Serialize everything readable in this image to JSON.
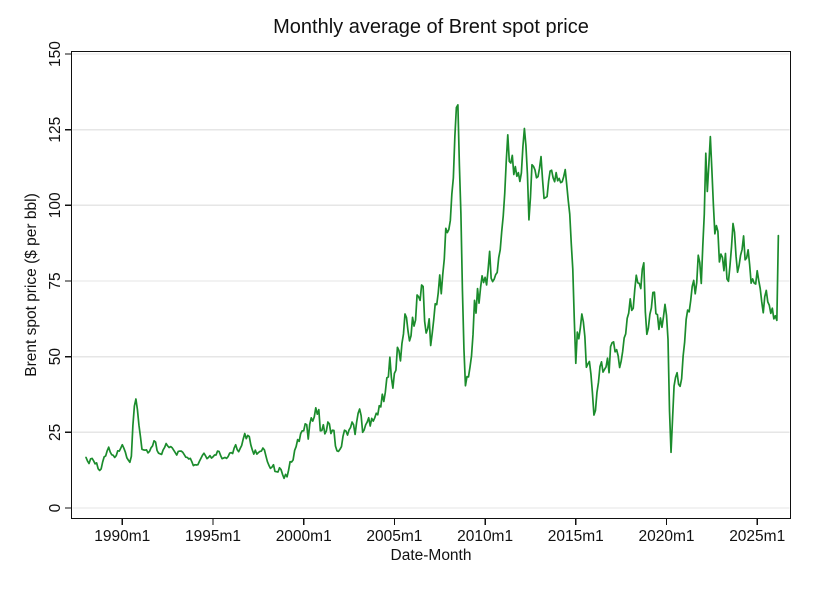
{
  "chart_data": {
    "type": "line",
    "title": "Monthly average of Brent spot price",
    "xlabel": "Date-Month",
    "ylabel": "Brent spot price ($ per bbl)",
    "x_ticks": [
      {
        "label": "1990m1",
        "year": 1990
      },
      {
        "label": "1995m1",
        "year": 1995
      },
      {
        "label": "2000m1",
        "year": 2000
      },
      {
        "label": "2005m1",
        "year": 2005
      },
      {
        "label": "2010m1",
        "year": 2010
      },
      {
        "label": "2015m1",
        "year": 2015
      },
      {
        "label": "2020m1",
        "year": 2020
      },
      {
        "label": "2025m1",
        "year": 2025
      }
    ],
    "y_ticks": [
      0,
      25,
      50,
      75,
      100,
      125,
      150
    ],
    "ylim": [
      0,
      150
    ],
    "grid": "horizontal-only",
    "legend": "none",
    "colors": {
      "line": "#1b8c2c",
      "gridline": "#e6e6e6",
      "axis": "#111111",
      "text": "#111111",
      "background": "#ffffff"
    },
    "series": [
      {
        "name": "Brent spot price",
        "frequency": "monthly",
        "start_year": 1988,
        "start_month": 1,
        "values_by_year": [
          [
            16.7,
            15.5,
            14.7,
            16.2,
            16.4,
            15.6,
            14.6,
            14.9,
            13.0,
            12.4,
            12.9,
            15.2
          ],
          [
            16.9,
            17.2,
            18.9,
            20.1,
            18.5,
            17.6,
            17.4,
            16.7,
            17.3,
            18.9,
            18.8,
            19.8
          ],
          [
            20.9,
            19.8,
            18.5,
            16.6,
            15.8,
            15.1,
            17.1,
            27.2,
            33.7,
            36.0,
            32.5,
            27.4
          ],
          [
            23.6,
            19.4,
            19.2,
            19.1,
            19.2,
            18.2,
            18.7,
            19.9,
            20.5,
            22.2,
            21.8,
            19.0
          ],
          [
            18.1,
            17.9,
            17.7,
            19.2,
            20.0,
            21.3,
            20.5,
            20.0,
            20.3,
            19.9,
            19.1,
            18.3
          ],
          [
            17.5,
            18.7,
            18.8,
            18.8,
            18.4,
            17.6,
            16.8,
            16.7,
            16.2,
            16.4,
            15.3,
            14.0
          ],
          [
            14.3,
            14.2,
            14.3,
            15.4,
            16.4,
            17.4,
            18.1,
            17.3,
            16.3,
            16.7,
            17.3,
            16.5
          ],
          [
            16.9,
            17.5,
            17.5,
            18.8,
            18.7,
            17.4,
            16.3,
            16.5,
            16.7,
            16.4,
            17.0,
            18.1
          ],
          [
            18.3,
            18.0,
            19.8,
            20.9,
            19.3,
            18.6,
            19.7,
            20.7,
            22.8,
            24.6,
            22.9,
            24.0
          ],
          [
            23.6,
            20.9,
            19.2,
            17.8,
            19.1,
            17.8,
            18.3,
            18.7,
            18.8,
            19.8,
            19.2,
            17.2
          ],
          [
            15.3,
            14.1,
            13.1,
            13.5,
            14.3,
            12.1,
            12.0,
            11.9,
            13.3,
            12.7,
            11.1,
            9.8
          ],
          [
            11.1,
            10.3,
            12.5,
            15.3,
            15.2,
            15.9,
            19.0,
            20.3,
            22.6,
            22.0,
            24.6,
            25.5
          ],
          [
            25.5,
            27.8,
            27.5,
            22.8,
            27.7,
            29.8,
            28.7,
            30.1,
            33.1,
            31.0,
            32.5,
            25.5
          ],
          [
            25.6,
            27.5,
            24.5,
            25.5,
            28.4,
            27.8,
            24.6,
            25.7,
            25.6,
            20.5,
            18.9,
            18.7
          ],
          [
            19.4,
            20.3,
            23.7,
            25.7,
            25.4,
            24.1,
            25.8,
            26.6,
            28.4,
            27.5,
            24.3,
            28.3
          ],
          [
            31.3,
            32.7,
            30.5,
            25.0,
            25.8,
            27.5,
            28.4,
            29.8,
            27.1,
            29.6,
            28.7,
            29.8
          ],
          [
            31.3,
            30.8,
            33.8,
            33.4,
            37.6,
            35.2,
            38.3,
            43.0,
            43.3,
            49.8,
            43.1,
            39.6
          ],
          [
            44.5,
            45.5,
            53.1,
            52.0,
            48.6,
            54.4,
            57.5,
            64.1,
            62.9,
            58.5,
            55.2,
            56.9
          ],
          [
            63.0,
            60.1,
            62.1,
            70.4,
            69.8,
            68.6,
            73.7,
            73.2,
            61.7,
            57.8,
            59.2,
            62.5
          ],
          [
            53.7,
            57.6,
            62.1,
            67.5,
            67.2,
            71.1,
            77.0,
            70.8,
            77.2,
            82.3,
            92.4,
            91.0
          ],
          [
            92.0,
            95.0,
            103.7,
            109.1,
            122.8,
            132.3,
            133.2,
            113.2,
            97.2,
            71.9,
            52.5,
            40.4
          ],
          [
            43.4,
            43.3,
            46.5,
            50.2,
            57.3,
            68.6,
            64.4,
            72.5,
            67.7,
            72.8,
            76.7,
            74.5
          ],
          [
            76.2,
            73.7,
            78.8,
            84.8,
            75.9,
            74.8,
            75.6,
            77.1,
            77.8,
            82.7,
            85.3,
            91.4
          ],
          [
            96.5,
            104.0,
            114.6,
            123.3,
            114.5,
            114.0,
            116.5,
            110.2,
            112.8,
            109.6,
            110.8,
            107.9
          ],
          [
            110.7,
            119.3,
            125.4,
            119.8,
            110.3,
            95.2,
            102.6,
            113.4,
            112.9,
            111.7,
            109.1,
            109.5
          ],
          [
            112.3,
            116.1,
            108.5,
            102.3,
            102.6,
            102.9,
            107.9,
            111.3,
            111.6,
            109.1,
            107.8,
            110.8
          ],
          [
            108.1,
            108.9,
            107.5,
            107.8,
            109.5,
            111.8,
            106.8,
            101.6,
            97.1,
            87.4,
            79.0,
            62.3
          ],
          [
            47.8,
            58.1,
            55.9,
            59.5,
            64.1,
            61.5,
            56.6,
            46.5,
            47.6,
            48.4,
            44.3,
            38.0
          ],
          [
            30.7,
            32.2,
            38.2,
            41.6,
            46.7,
            48.3,
            44.9,
            45.8,
            46.6,
            49.5,
            44.7,
            53.3
          ],
          [
            54.6,
            54.9,
            51.6,
            52.3,
            50.3,
            46.4,
            48.5,
            51.7,
            56.2,
            57.5,
            62.7,
            64.4
          ],
          [
            69.1,
            65.3,
            66.0,
            72.1,
            76.9,
            74.4,
            74.2,
            72.5,
            78.9,
            81.0,
            64.8,
            57.4
          ],
          [
            59.4,
            64.0,
            66.1,
            71.2,
            71.3,
            64.2,
            63.9,
            59.0,
            62.8,
            59.7,
            63.2,
            67.3
          ],
          [
            63.7,
            55.7,
            32.0,
            18.4,
            29.4,
            40.3,
            43.2,
            44.7,
            40.9,
            40.2,
            42.7,
            50.2
          ],
          [
            54.8,
            62.3,
            65.4,
            64.8,
            68.5,
            73.2,
            75.2,
            70.8,
            74.5,
            83.5,
            81.1,
            74.2
          ],
          [
            86.5,
            97.1,
            117.2,
            104.6,
            113.3,
            122.7,
            111.9,
            100.4,
            90.6,
            93.3,
            91.4,
            81.3
          ],
          [
            83.9,
            82.8,
            78.4,
            84.1,
            75.7,
            74.9,
            80.1,
            86.2,
            94.0,
            91.1,
            83.2,
            77.9
          ],
          [
            80.1,
            83.5,
            85.4,
            89.9,
            82.0,
            82.6,
            85.3,
            80.4,
            74.3,
            75.7,
            74.3,
            74.0
          ],
          [
            78.4,
            75.2,
            72.5,
            68.1,
            64.5,
            69.8,
            71.9,
            68.1,
            67.0,
            64.3,
            66.0,
            62.5
          ],
          [
            63.5,
            62.0,
            90.0
          ]
        ]
      }
    ]
  }
}
